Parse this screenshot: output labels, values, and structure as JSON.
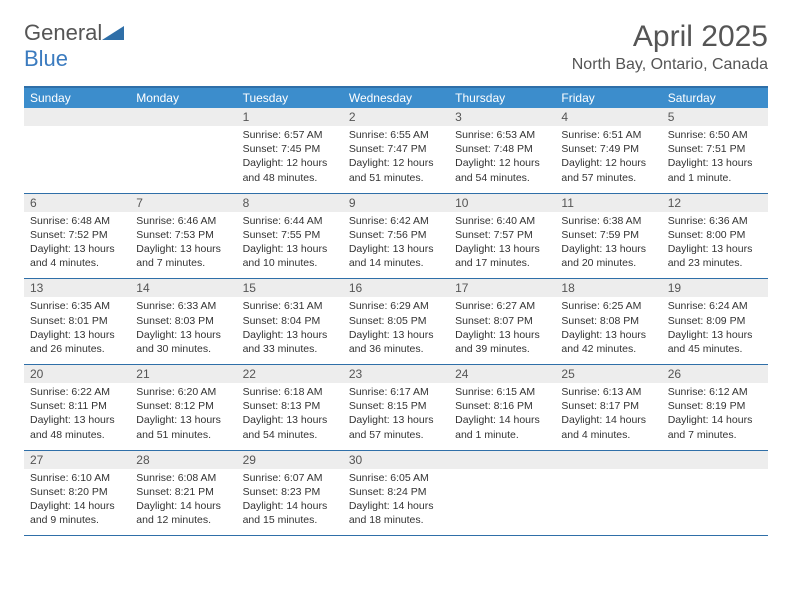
{
  "brand": {
    "part1": "General",
    "part2": "Blue"
  },
  "title": "April 2025",
  "location": "North Bay, Ontario, Canada",
  "colors": {
    "header_bg": "#3c8dcc",
    "header_border": "#2f6fa8",
    "daynum_bg": "#ededed",
    "text": "#333333",
    "muted": "#555555"
  },
  "typography": {
    "base_font": "Arial",
    "title_size_pt": 22,
    "body_size_pt": 8
  },
  "days_of_week": [
    "Sunday",
    "Monday",
    "Tuesday",
    "Wednesday",
    "Thursday",
    "Friday",
    "Saturday"
  ],
  "weeks": [
    [
      null,
      null,
      {
        "n": "1",
        "sr": "6:57 AM",
        "ss": "7:45 PM",
        "dl": "12 hours and 48 minutes."
      },
      {
        "n": "2",
        "sr": "6:55 AM",
        "ss": "7:47 PM",
        "dl": "12 hours and 51 minutes."
      },
      {
        "n": "3",
        "sr": "6:53 AM",
        "ss": "7:48 PM",
        "dl": "12 hours and 54 minutes."
      },
      {
        "n": "4",
        "sr": "6:51 AM",
        "ss": "7:49 PM",
        "dl": "12 hours and 57 minutes."
      },
      {
        "n": "5",
        "sr": "6:50 AM",
        "ss": "7:51 PM",
        "dl": "13 hours and 1 minute."
      }
    ],
    [
      {
        "n": "6",
        "sr": "6:48 AM",
        "ss": "7:52 PM",
        "dl": "13 hours and 4 minutes."
      },
      {
        "n": "7",
        "sr": "6:46 AM",
        "ss": "7:53 PM",
        "dl": "13 hours and 7 minutes."
      },
      {
        "n": "8",
        "sr": "6:44 AM",
        "ss": "7:55 PM",
        "dl": "13 hours and 10 minutes."
      },
      {
        "n": "9",
        "sr": "6:42 AM",
        "ss": "7:56 PM",
        "dl": "13 hours and 14 minutes."
      },
      {
        "n": "10",
        "sr": "6:40 AM",
        "ss": "7:57 PM",
        "dl": "13 hours and 17 minutes."
      },
      {
        "n": "11",
        "sr": "6:38 AM",
        "ss": "7:59 PM",
        "dl": "13 hours and 20 minutes."
      },
      {
        "n": "12",
        "sr": "6:36 AM",
        "ss": "8:00 PM",
        "dl": "13 hours and 23 minutes."
      }
    ],
    [
      {
        "n": "13",
        "sr": "6:35 AM",
        "ss": "8:01 PM",
        "dl": "13 hours and 26 minutes."
      },
      {
        "n": "14",
        "sr": "6:33 AM",
        "ss": "8:03 PM",
        "dl": "13 hours and 30 minutes."
      },
      {
        "n": "15",
        "sr": "6:31 AM",
        "ss": "8:04 PM",
        "dl": "13 hours and 33 minutes."
      },
      {
        "n": "16",
        "sr": "6:29 AM",
        "ss": "8:05 PM",
        "dl": "13 hours and 36 minutes."
      },
      {
        "n": "17",
        "sr": "6:27 AM",
        "ss": "8:07 PM",
        "dl": "13 hours and 39 minutes."
      },
      {
        "n": "18",
        "sr": "6:25 AM",
        "ss": "8:08 PM",
        "dl": "13 hours and 42 minutes."
      },
      {
        "n": "19",
        "sr": "6:24 AM",
        "ss": "8:09 PM",
        "dl": "13 hours and 45 minutes."
      }
    ],
    [
      {
        "n": "20",
        "sr": "6:22 AM",
        "ss": "8:11 PM",
        "dl": "13 hours and 48 minutes."
      },
      {
        "n": "21",
        "sr": "6:20 AM",
        "ss": "8:12 PM",
        "dl": "13 hours and 51 minutes."
      },
      {
        "n": "22",
        "sr": "6:18 AM",
        "ss": "8:13 PM",
        "dl": "13 hours and 54 minutes."
      },
      {
        "n": "23",
        "sr": "6:17 AM",
        "ss": "8:15 PM",
        "dl": "13 hours and 57 minutes."
      },
      {
        "n": "24",
        "sr": "6:15 AM",
        "ss": "8:16 PM",
        "dl": "14 hours and 1 minute."
      },
      {
        "n": "25",
        "sr": "6:13 AM",
        "ss": "8:17 PM",
        "dl": "14 hours and 4 minutes."
      },
      {
        "n": "26",
        "sr": "6:12 AM",
        "ss": "8:19 PM",
        "dl": "14 hours and 7 minutes."
      }
    ],
    [
      {
        "n": "27",
        "sr": "6:10 AM",
        "ss": "8:20 PM",
        "dl": "14 hours and 9 minutes."
      },
      {
        "n": "28",
        "sr": "6:08 AM",
        "ss": "8:21 PM",
        "dl": "14 hours and 12 minutes."
      },
      {
        "n": "29",
        "sr": "6:07 AM",
        "ss": "8:23 PM",
        "dl": "14 hours and 15 minutes."
      },
      {
        "n": "30",
        "sr": "6:05 AM",
        "ss": "8:24 PM",
        "dl": "14 hours and 18 minutes."
      },
      null,
      null,
      null
    ]
  ],
  "labels": {
    "sunrise": "Sunrise:",
    "sunset": "Sunset:",
    "daylight": "Daylight:"
  }
}
